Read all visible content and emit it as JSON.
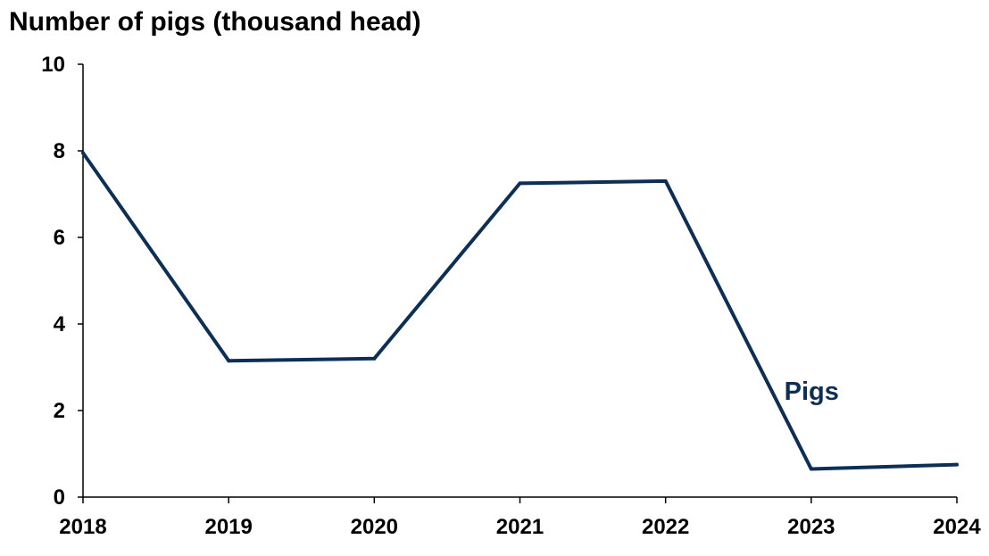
{
  "chart_data": {
    "type": "line",
    "title": "Number of pigs (thousand head)",
    "xlabel": "",
    "ylabel": "",
    "x": [
      "2018",
      "2019",
      "2020",
      "2021",
      "2022",
      "2023",
      "2024"
    ],
    "series": [
      {
        "name": "Pigs",
        "values": [
          7.95,
          3.15,
          3.2,
          7.25,
          7.3,
          0.65,
          0.75
        ],
        "color": "#0d2f55"
      }
    ],
    "ylim": [
      0,
      10
    ],
    "yticks": [
      0,
      2,
      4,
      6,
      8,
      10
    ],
    "grid": false,
    "legend": "inline label near the last segment"
  }
}
